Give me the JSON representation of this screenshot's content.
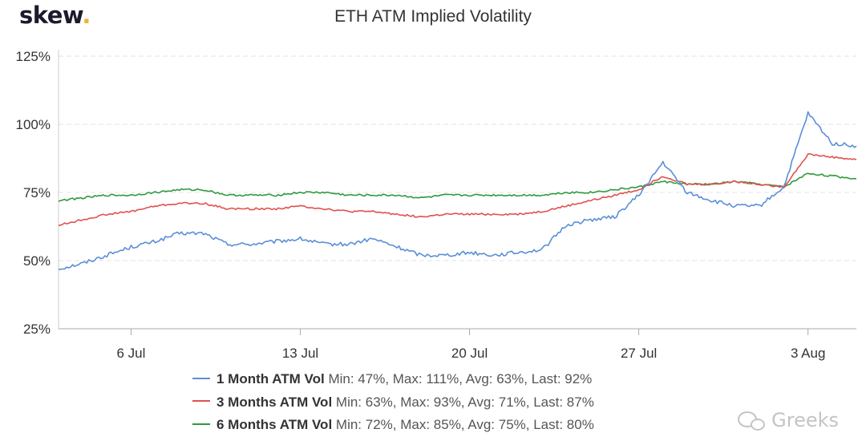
{
  "logo": {
    "text": "skew",
    "dot": "."
  },
  "watermark": {
    "text": "Greeks",
    "icon": "wechat-icon"
  },
  "chart_data": {
    "type": "line",
    "title": "ETH ATM Implied Volatility",
    "xlabel": "",
    "ylabel": "",
    "y_unit": "%",
    "ylim": [
      25,
      125
    ],
    "y_ticks": [
      25,
      50,
      75,
      100,
      125
    ],
    "y_tick_labels": [
      "25%",
      "50%",
      "75%",
      "100%",
      "125%"
    ],
    "xlim": [
      "2020-07-03",
      "2020-08-05"
    ],
    "x_ticks": [
      "2020-07-06",
      "2020-07-13",
      "2020-07-20",
      "2020-07-27",
      "2020-08-03"
    ],
    "x_tick_labels": [
      "6 Jul",
      "13 Jul",
      "20 Jul",
      "27 Jul",
      "3 Aug"
    ],
    "grid": {
      "horizontal": true,
      "vertical": false
    },
    "legend_position": "bottom",
    "series": [
      {
        "name": "1 Month ATM Vol",
        "stats": "Min: 47%, Max: 111%, Avg: 63%, Last: 92%",
        "color": "#5b8fd6",
        "x": [
          "2020-07-03",
          "2020-07-04",
          "2020-07-05",
          "2020-07-06",
          "2020-07-07",
          "2020-07-08",
          "2020-07-09",
          "2020-07-10",
          "2020-07-11",
          "2020-07-12",
          "2020-07-13",
          "2020-07-14",
          "2020-07-15",
          "2020-07-16",
          "2020-07-17",
          "2020-07-18",
          "2020-07-19",
          "2020-07-20",
          "2020-07-21",
          "2020-07-22",
          "2020-07-23",
          "2020-07-24",
          "2020-07-25",
          "2020-07-26",
          "2020-07-27",
          "2020-07-28",
          "2020-07-29",
          "2020-07-30",
          "2020-07-31",
          "2020-08-01",
          "2020-08-02",
          "2020-08-03",
          "2020-08-04",
          "2020-08-05"
        ],
        "values": [
          47,
          49,
          52,
          55,
          57,
          60,
          60,
          56,
          56,
          57,
          58,
          56,
          56,
          58,
          55,
          52,
          52,
          53,
          52,
          53,
          54,
          63,
          65,
          66,
          74,
          86,
          75,
          72,
          70,
          70,
          77,
          104,
          93,
          92
        ]
      },
      {
        "name": "3 Months ATM Vol",
        "stats": "Min: 63%, Max: 93%, Avg: 71%, Last: 87%",
        "color": "#e05150",
        "x": [
          "2020-07-03",
          "2020-07-04",
          "2020-07-05",
          "2020-07-06",
          "2020-07-07",
          "2020-07-08",
          "2020-07-09",
          "2020-07-10",
          "2020-07-11",
          "2020-07-12",
          "2020-07-13",
          "2020-07-14",
          "2020-07-15",
          "2020-07-16",
          "2020-07-17",
          "2020-07-18",
          "2020-07-19",
          "2020-07-20",
          "2020-07-21",
          "2020-07-22",
          "2020-07-23",
          "2020-07-24",
          "2020-07-25",
          "2020-07-26",
          "2020-07-27",
          "2020-07-28",
          "2020-07-29",
          "2020-07-30",
          "2020-07-31",
          "2020-08-01",
          "2020-08-02",
          "2020-08-03",
          "2020-08-04",
          "2020-08-05"
        ],
        "values": [
          63,
          65,
          67,
          68,
          70,
          71,
          71,
          69,
          69,
          69,
          70,
          69,
          68,
          68,
          67,
          66,
          67,
          67,
          67,
          67,
          68,
          70,
          72,
          74,
          76,
          81,
          78,
          78,
          79,
          78,
          77,
          89,
          88,
          87
        ]
      },
      {
        "name": "6 Months ATM Vol",
        "stats": "Min: 72%, Max: 85%, Avg: 75%, Last: 80%",
        "color": "#2e9a3e",
        "x": [
          "2020-07-03",
          "2020-07-04",
          "2020-07-05",
          "2020-07-06",
          "2020-07-07",
          "2020-07-08",
          "2020-07-09",
          "2020-07-10",
          "2020-07-11",
          "2020-07-12",
          "2020-07-13",
          "2020-07-14",
          "2020-07-15",
          "2020-07-16",
          "2020-07-17",
          "2020-07-18",
          "2020-07-19",
          "2020-07-20",
          "2020-07-21",
          "2020-07-22",
          "2020-07-23",
          "2020-07-24",
          "2020-07-25",
          "2020-07-26",
          "2020-07-27",
          "2020-07-28",
          "2020-07-29",
          "2020-07-30",
          "2020-07-31",
          "2020-08-01",
          "2020-08-02",
          "2020-08-03",
          "2020-08-04",
          "2020-08-05"
        ],
        "values": [
          72,
          73,
          74,
          74,
          75,
          76,
          76,
          74,
          74,
          74,
          75,
          75,
          74,
          74,
          74,
          73,
          74,
          74,
          74,
          74,
          74,
          75,
          75,
          76,
          77,
          79,
          78,
          78,
          79,
          78,
          77,
          82,
          81,
          80
        ]
      }
    ]
  }
}
